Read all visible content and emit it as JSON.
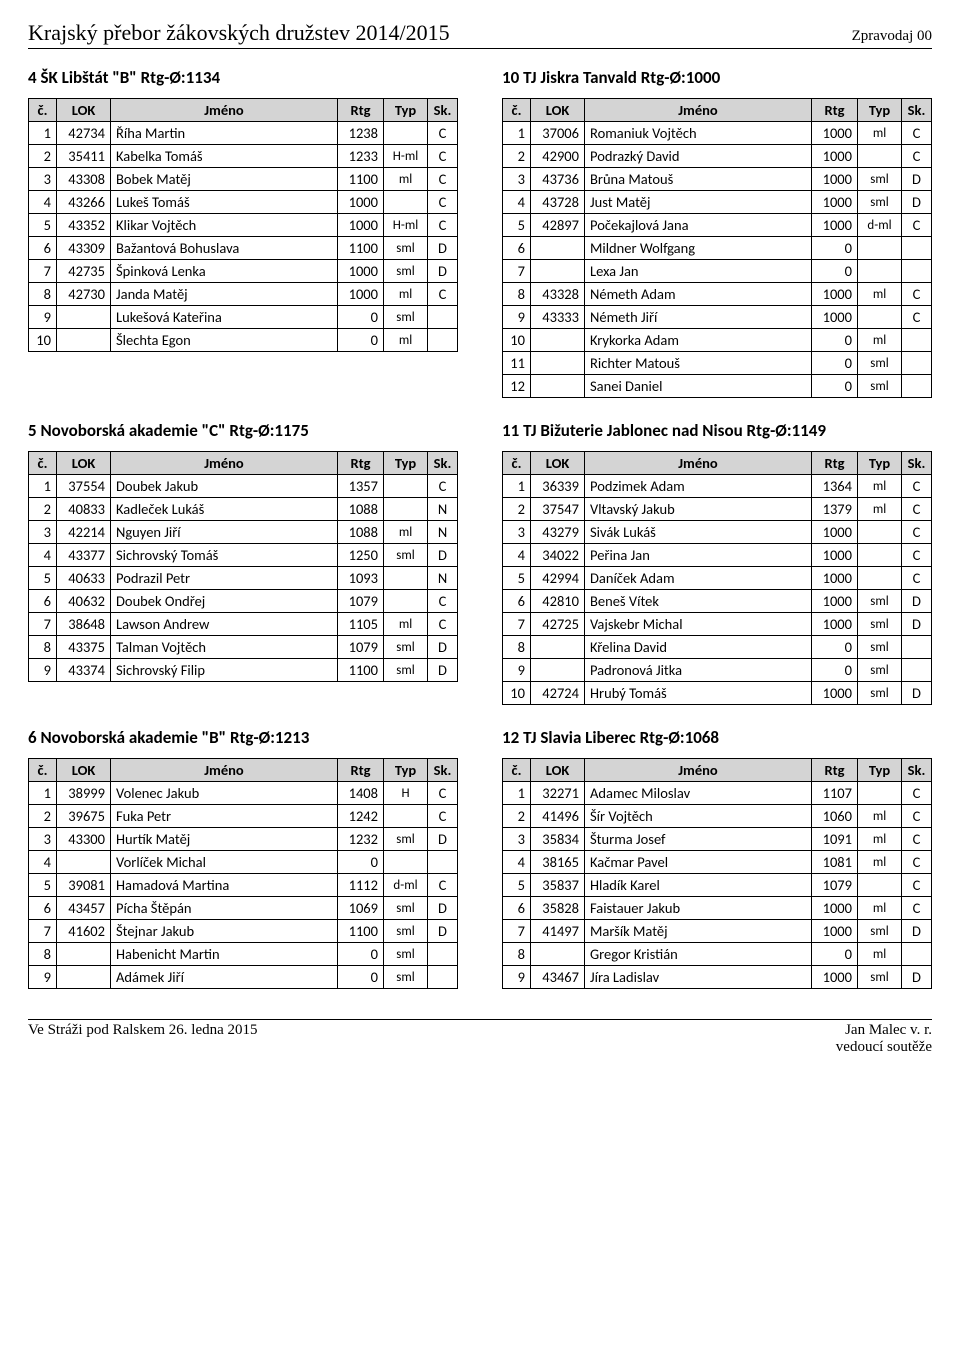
{
  "header": {
    "title": "Krajský přebor žákovských družstev 2014/2015",
    "right": "Zpravodaj 00"
  },
  "table_headers": {
    "num": "č.",
    "lok": "LOK",
    "name": "Jméno",
    "rtg": "Rtg",
    "typ": "Typ",
    "sk": "Sk."
  },
  "teams": [
    {
      "id": "team4",
      "title": "4  ŠK Libštát \"B\" Rtg-Ø:1134",
      "rows": [
        {
          "n": "1",
          "lok": "42734",
          "name": "Říha Martin",
          "rtg": "1238",
          "typ": "",
          "sk": "C"
        },
        {
          "n": "2",
          "lok": "35411",
          "name": "Kabelka Tomáš",
          "rtg": "1233",
          "typ": "H-ml",
          "sk": "C"
        },
        {
          "n": "3",
          "lok": "43308",
          "name": "Bobek Matěj",
          "rtg": "1100",
          "typ": "ml",
          "sk": "C"
        },
        {
          "n": "4",
          "lok": "43266",
          "name": "Lukeš Tomáš",
          "rtg": "1000",
          "typ": "",
          "sk": "C"
        },
        {
          "n": "5",
          "lok": "43352",
          "name": "Klikar Vojtěch",
          "rtg": "1000",
          "typ": "H-ml",
          "sk": "C"
        },
        {
          "n": "6",
          "lok": "43309",
          "name": "Bažantová Bohuslava",
          "rtg": "1100",
          "typ": "sml",
          "sk": "D"
        },
        {
          "n": "7",
          "lok": "42735",
          "name": "Špinková Lenka",
          "rtg": "1000",
          "typ": "sml",
          "sk": "D"
        },
        {
          "n": "8",
          "lok": "42730",
          "name": "Janda Matěj",
          "rtg": "1000",
          "typ": "ml",
          "sk": "C"
        },
        {
          "n": "9",
          "lok": "",
          "name": "Lukešová Kateřina",
          "rtg": "0",
          "typ": "sml",
          "sk": ""
        },
        {
          "n": "10",
          "lok": "",
          "name": "Šlechta Egon",
          "rtg": "0",
          "typ": "ml",
          "sk": ""
        }
      ]
    },
    {
      "id": "team10",
      "title": "10  TJ Jiskra Tanvald Rtg-Ø:1000",
      "rows": [
        {
          "n": "1",
          "lok": "37006",
          "name": "Romaniuk Vojtěch",
          "rtg": "1000",
          "typ": "ml",
          "sk": "C"
        },
        {
          "n": "2",
          "lok": "42900",
          "name": "Podrazký David",
          "rtg": "1000",
          "typ": "",
          "sk": "C"
        },
        {
          "n": "3",
          "lok": "43736",
          "name": "Brůna Matouš",
          "rtg": "1000",
          "typ": "sml",
          "sk": "D"
        },
        {
          "n": "4",
          "lok": "43728",
          "name": "Just Matěj",
          "rtg": "1000",
          "typ": "sml",
          "sk": "D"
        },
        {
          "n": "5",
          "lok": "42897",
          "name": "Počekajlová Jana",
          "rtg": "1000",
          "typ": "d-ml",
          "sk": "C"
        },
        {
          "n": "6",
          "lok": "",
          "name": "Mildner Wolfgang",
          "rtg": "0",
          "typ": "",
          "sk": ""
        },
        {
          "n": "7",
          "lok": "",
          "name": "Lexa Jan",
          "rtg": "0",
          "typ": "",
          "sk": ""
        },
        {
          "n": "8",
          "lok": "43328",
          "name": "Németh Adam",
          "rtg": "1000",
          "typ": "ml",
          "sk": "C"
        },
        {
          "n": "9",
          "lok": "43333",
          "name": "Németh Jiří",
          "rtg": "1000",
          "typ": "",
          "sk": "C"
        },
        {
          "n": "10",
          "lok": "",
          "name": "Krykorka Adam",
          "rtg": "0",
          "typ": "ml",
          "sk": ""
        },
        {
          "n": "11",
          "lok": "",
          "name": "Richter Matouš",
          "rtg": "0",
          "typ": "sml",
          "sk": ""
        },
        {
          "n": "12",
          "lok": "",
          "name": "Sanei Daniel",
          "rtg": "0",
          "typ": "sml",
          "sk": ""
        }
      ]
    },
    {
      "id": "team5",
      "title": "5  Novoborská akademie \"C\" Rtg-Ø:1175",
      "rows": [
        {
          "n": "1",
          "lok": "37554",
          "name": "Doubek Jakub",
          "rtg": "1357",
          "typ": "",
          "sk": "C"
        },
        {
          "n": "2",
          "lok": "40833",
          "name": "Kadleček Lukáš",
          "rtg": "1088",
          "typ": "",
          "sk": "N"
        },
        {
          "n": "3",
          "lok": "42214",
          "name": "Nguyen Jiří",
          "rtg": "1088",
          "typ": "ml",
          "sk": "N"
        },
        {
          "n": "4",
          "lok": "43377",
          "name": "Sichrovský Tomáš",
          "rtg": "1250",
          "typ": "sml",
          "sk": "D"
        },
        {
          "n": "5",
          "lok": "40633",
          "name": "Podrazil Petr",
          "rtg": "1093",
          "typ": "",
          "sk": "N"
        },
        {
          "n": "6",
          "lok": "40632",
          "name": "Doubek Ondřej",
          "rtg": "1079",
          "typ": "",
          "sk": "C"
        },
        {
          "n": "7",
          "lok": "38648",
          "name": "Lawson Andrew",
          "rtg": "1105",
          "typ": "ml",
          "sk": "C"
        },
        {
          "n": "8",
          "lok": "43375",
          "name": "Talman Vojtěch",
          "rtg": "1079",
          "typ": "sml",
          "sk": "D"
        },
        {
          "n": "9",
          "lok": "43374",
          "name": "Sichrovský Filip",
          "rtg": "1100",
          "typ": "sml",
          "sk": "D"
        }
      ]
    },
    {
      "id": "team11",
      "title": "11  TJ Bižuterie Jablonec nad Nisou Rtg-Ø:1149",
      "rows": [
        {
          "n": "1",
          "lok": "36339",
          "name": "Podzimek Adam",
          "rtg": "1364",
          "typ": "ml",
          "sk": "C"
        },
        {
          "n": "2",
          "lok": "37547",
          "name": "Vltavský Jakub",
          "rtg": "1379",
          "typ": "ml",
          "sk": "C"
        },
        {
          "n": "3",
          "lok": "43279",
          "name": "Sivák Lukáš",
          "rtg": "1000",
          "typ": "",
          "sk": "C"
        },
        {
          "n": "4",
          "lok": "34022",
          "name": "Peřina Jan",
          "rtg": "1000",
          "typ": "",
          "sk": "C"
        },
        {
          "n": "5",
          "lok": "42994",
          "name": "Daníček Adam",
          "rtg": "1000",
          "typ": "",
          "sk": "C"
        },
        {
          "n": "6",
          "lok": "42810",
          "name": "Beneš Vítek",
          "rtg": "1000",
          "typ": "sml",
          "sk": "D"
        },
        {
          "n": "7",
          "lok": "42725",
          "name": "Vajskebr Michal",
          "rtg": "1000",
          "typ": "sml",
          "sk": "D"
        },
        {
          "n": "8",
          "lok": "",
          "name": "Křelina David",
          "rtg": "0",
          "typ": "sml",
          "sk": ""
        },
        {
          "n": "9",
          "lok": "",
          "name": "Padronová Jitka",
          "rtg": "0",
          "typ": "sml",
          "sk": ""
        },
        {
          "n": "10",
          "lok": "42724",
          "name": "Hrubý Tomáš",
          "rtg": "1000",
          "typ": "sml",
          "sk": "D"
        }
      ]
    },
    {
      "id": "team6",
      "title": "6  Novoborská akademie \"B\" Rtg-Ø:1213",
      "rows": [
        {
          "n": "1",
          "lok": "38999",
          "name": "Volenec Jakub",
          "rtg": "1408",
          "typ": "H",
          "sk": "C"
        },
        {
          "n": "2",
          "lok": "39675",
          "name": "Fuka Petr",
          "rtg": "1242",
          "typ": "",
          "sk": "C"
        },
        {
          "n": "3",
          "lok": "43300",
          "name": "Hurtík Matěj",
          "rtg": "1232",
          "typ": "sml",
          "sk": "D"
        },
        {
          "n": "4",
          "lok": "",
          "name": "Vorlíček Michal",
          "rtg": "0",
          "typ": "",
          "sk": ""
        },
        {
          "n": "5",
          "lok": "39081",
          "name": "Hamadová Martina",
          "rtg": "1112",
          "typ": "d-ml",
          "sk": "C"
        },
        {
          "n": "6",
          "lok": "43457",
          "name": "Pícha Štěpán",
          "rtg": "1069",
          "typ": "sml",
          "sk": "D"
        },
        {
          "n": "7",
          "lok": "41602",
          "name": "Štejnar Jakub",
          "rtg": "1100",
          "typ": "sml",
          "sk": "D"
        },
        {
          "n": "8",
          "lok": "",
          "name": "Habenicht Martin",
          "rtg": "0",
          "typ": "sml",
          "sk": ""
        },
        {
          "n": "9",
          "lok": "",
          "name": "Adámek Jiří",
          "rtg": "0",
          "typ": "sml",
          "sk": ""
        }
      ]
    },
    {
      "id": "team12",
      "title": "12  TJ Slavia Liberec Rtg-Ø:1068",
      "rows": [
        {
          "n": "1",
          "lok": "32271",
          "name": "Adamec Miloslav",
          "rtg": "1107",
          "typ": "",
          "sk": "C"
        },
        {
          "n": "2",
          "lok": "41496",
          "name": "Šír Vojtěch",
          "rtg": "1060",
          "typ": "ml",
          "sk": "C"
        },
        {
          "n": "3",
          "lok": "35834",
          "name": "Šturma Josef",
          "rtg": "1091",
          "typ": "ml",
          "sk": "C"
        },
        {
          "n": "4",
          "lok": "38165",
          "name": "Kačmar Pavel",
          "rtg": "1081",
          "typ": "ml",
          "sk": "C"
        },
        {
          "n": "5",
          "lok": "35837",
          "name": "Hladík Karel",
          "rtg": "1079",
          "typ": "",
          "sk": "C"
        },
        {
          "n": "6",
          "lok": "35828",
          "name": "Faistauer Jakub",
          "rtg": "1000",
          "typ": "ml",
          "sk": "C"
        },
        {
          "n": "7",
          "lok": "41497",
          "name": "Maršík Matěj",
          "rtg": "1000",
          "typ": "sml",
          "sk": "D"
        },
        {
          "n": "8",
          "lok": "",
          "name": "Gregor Kristián",
          "rtg": "0",
          "typ": "ml",
          "sk": ""
        },
        {
          "n": "9",
          "lok": "43467",
          "name": "Jíra Ladislav",
          "rtg": "1000",
          "typ": "sml",
          "sk": "D"
        }
      ]
    }
  ],
  "footer": {
    "left": "Ve Stráži pod Ralskem 26. ledna 2015",
    "right1": "Jan Malec v. r.",
    "right2": "vedoucí soutěže"
  },
  "pairs": [
    [
      0,
      1
    ],
    [
      2,
      3
    ],
    [
      4,
      5
    ]
  ]
}
